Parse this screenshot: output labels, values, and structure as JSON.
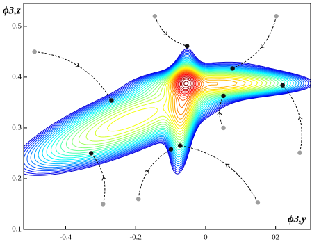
{
  "chart_data": {
    "type": "contour",
    "x_label": "ϕ3,y",
    "y_label": "ϕ3,z",
    "xlim": [
      -0.52,
      0.3
    ],
    "ylim": [
      0.1,
      0.545
    ],
    "xticks": [
      -0.4,
      -0.2,
      0,
      {
        "value": 0.2,
        "label": "02"
      }
    ],
    "yticks": [
      0.1,
      0.2,
      0.3,
      0.4,
      0.5
    ],
    "trajectories": {
      "start_x": [
        -0.489,
        -0.145,
        0.202,
        0.269,
        0.051,
        0.149,
        -0.192,
        -0.293
      ],
      "start_y": [
        0.45,
        0.52,
        0.52,
        0.251,
        0.3,
        0.153,
        0.16,
        0.15
      ],
      "end_x": [
        -0.269,
        -0.053,
        0.077,
        0.22,
        0.051,
        -0.073,
        -0.099,
        -0.327
      ],
      "end_y": [
        0.354,
        0.461,
        0.417,
        0.384,
        0.363,
        0.265,
        0.258,
        0.25
      ],
      "start_color": "#9e9e9e",
      "end_color": "#111111"
    }
  }
}
